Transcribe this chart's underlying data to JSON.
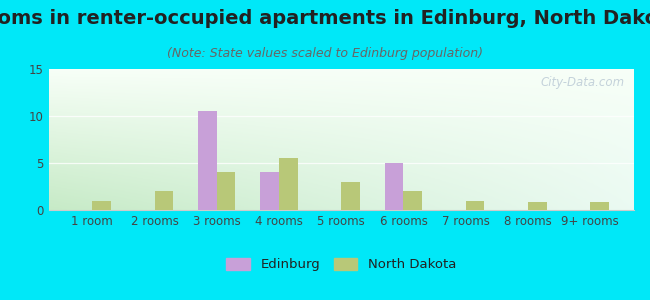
{
  "title": "Rooms in renter-occupied apartments in Edinburg, North Dakota",
  "subtitle": "(Note: State values scaled to Edinburg population)",
  "categories": [
    "1 room",
    "2 rooms",
    "3 rooms",
    "4 rooms",
    "5 rooms",
    "6 rooms",
    "7 rooms",
    "8 rooms",
    "9+ rooms"
  ],
  "edinburg_values": [
    0,
    0,
    10.5,
    4.0,
    0,
    5.0,
    0,
    0,
    0
  ],
  "north_dakota_values": [
    1.0,
    2.0,
    4.0,
    5.5,
    3.0,
    2.0,
    1.0,
    0.8,
    0.8
  ],
  "edinburg_color": "#c8a0d8",
  "north_dakota_color": "#b8c878",
  "background_outer": "#00e8f8",
  "ylim": [
    0,
    15
  ],
  "yticks": [
    0,
    5,
    10,
    15
  ],
  "bar_width": 0.3,
  "title_fontsize": 14,
  "subtitle_fontsize": 9,
  "tick_fontsize": 8.5,
  "legend_fontsize": 9.5,
  "watermark_text": "City-Data.com"
}
